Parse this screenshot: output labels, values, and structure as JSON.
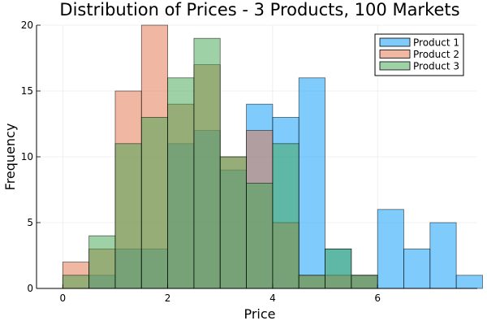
{
  "chart_data": {
    "type": "histogram",
    "title": "Distribution of Prices - 3 Products, 100 Markets",
    "xlabel": "Price",
    "ylabel": "Frequency",
    "xlim": [
      -0.5,
      7.9
    ],
    "ylim": [
      0,
      20
    ],
    "xticks": [
      0,
      2,
      4,
      6
    ],
    "yticks": [
      0,
      5,
      10,
      15,
      20
    ],
    "grid": true,
    "legend_position": "top-right",
    "bin_edges": [
      0,
      0.5,
      1,
      1.5,
      2,
      2.5,
      3,
      3.5,
      4,
      4.5,
      5,
      5.5,
      6,
      6.5,
      7,
      7.5
    ],
    "series": [
      {
        "name": "Product 1",
        "color": "#009af9",
        "opacity": 0.5,
        "values": [
          0,
          1,
          3,
          3,
          11,
          12,
          9,
          14,
          13,
          16,
          3,
          1,
          6,
          3,
          5,
          1
        ]
      },
      {
        "name": "Product 2",
        "color": "#e26f46",
        "opacity": 0.5,
        "values": [
          2,
          3,
          15,
          20,
          14,
          17,
          10,
          12,
          5,
          1,
          1,
          1,
          0,
          0,
          0,
          0
        ]
      },
      {
        "name": "Product 3",
        "color": "#3da44d",
        "opacity": 0.5,
        "values": [
          1,
          4,
          11,
          13,
          16,
          19,
          10,
          8,
          11,
          1,
          3,
          1,
          0,
          0,
          0,
          0
        ]
      }
    ]
  }
}
